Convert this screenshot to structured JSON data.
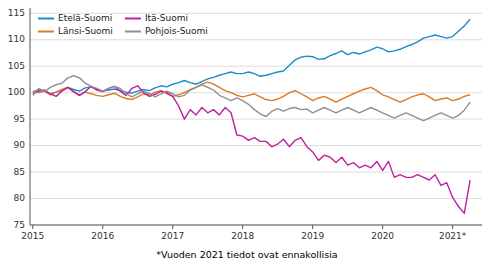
{
  "chart_data": {
    "type": "line",
    "subtitle": "*Vuoden 2021 tiedot ovat ennakollisia",
    "x": [
      2015,
      2015.083333,
      2015.166667,
      2015.25,
      2015.333333,
      2015.416667,
      2015.5,
      2015.583333,
      2015.666667,
      2015.75,
      2015.833333,
      2015.916667,
      2016,
      2016.083333,
      2016.166667,
      2016.25,
      2016.333333,
      2016.416667,
      2016.5,
      2016.583333,
      2016.666667,
      2016.75,
      2016.833333,
      2016.916667,
      2017,
      2017.083333,
      2017.166667,
      2017.25,
      2017.333333,
      2017.416667,
      2017.5,
      2017.583333,
      2017.666667,
      2017.75,
      2017.833333,
      2017.916667,
      2018,
      2018.083333,
      2018.166667,
      2018.25,
      2018.333333,
      2018.416667,
      2018.5,
      2018.583333,
      2018.666667,
      2018.75,
      2018.833333,
      2018.916667,
      2019,
      2019.083333,
      2019.166667,
      2019.25,
      2019.333333,
      2019.416667,
      2019.5,
      2019.583333,
      2019.666667,
      2019.75,
      2019.833333,
      2019.916667,
      2020,
      2020.083333,
      2020.166667,
      2020.25,
      2020.333333,
      2020.416667,
      2020.5,
      2020.583333,
      2020.666667,
      2020.75,
      2020.833333,
      2020.916667,
      2021,
      2021.083333,
      2021.166667,
      2021.25
    ],
    "series": [
      {
        "name": "Etelä-Suomi",
        "color": "#1a8dc8",
        "values": [
          100.2,
          100.5,
          100.3,
          99.8,
          100.1,
          100.4,
          101.0,
          100.6,
          100.3,
          100.9,
          101.1,
          100.6,
          100.3,
          100.5,
          100.7,
          100.4,
          100.1,
          99.9,
          100.3,
          100.6,
          100.4,
          100.9,
          101.3,
          101.1,
          101.6,
          101.9,
          102.3,
          101.9,
          101.6,
          102.1,
          102.6,
          102.9,
          103.3,
          103.6,
          103.9,
          103.6,
          103.6,
          103.9,
          103.6,
          103.1,
          103.3,
          103.6,
          103.9,
          104.1,
          105.2,
          106.2,
          106.7,
          106.9,
          106.8,
          106.3,
          106.4,
          107.0,
          107.4,
          107.9,
          107.2,
          107.6,
          107.3,
          107.7,
          108.1,
          108.6,
          108.3,
          107.7,
          107.9,
          108.2,
          108.7,
          109.1,
          109.6,
          110.3,
          110.6,
          110.9,
          110.6,
          110.3,
          110.6,
          111.6,
          112.6,
          113.9
        ]
      },
      {
        "name": "Länsi-Suomi",
        "color": "#e07820",
        "values": [
          100.2,
          100.0,
          100.3,
          99.6,
          100.1,
          100.6,
          101.0,
          100.2,
          99.5,
          100.1,
          99.8,
          99.5,
          99.3,
          99.6,
          99.9,
          99.3,
          98.9,
          98.7,
          99.2,
          99.8,
          99.6,
          100.1,
          100.4,
          99.8,
          99.3,
          99.6,
          100.0,
          100.6,
          101.0,
          101.6,
          102.0,
          101.6,
          101.0,
          100.4,
          100.0,
          99.5,
          99.2,
          99.5,
          99.8,
          99.2,
          98.7,
          98.5,
          98.8,
          99.3,
          100.0,
          100.4,
          99.8,
          99.2,
          98.5,
          99.0,
          99.3,
          98.8,
          98.2,
          98.8,
          99.3,
          99.8,
          100.3,
          100.7,
          101.0,
          100.4,
          99.6,
          99.2,
          98.7,
          98.2,
          98.7,
          99.2,
          99.6,
          99.8,
          99.2,
          98.5,
          98.8,
          99.0,
          98.5,
          98.8,
          99.3,
          99.6
        ]
      },
      {
        "name": "Itä-Suomi",
        "color": "#c020a0",
        "values": [
          99.8,
          100.3,
          100.5,
          99.8,
          99.3,
          100.3,
          101.0,
          100.2,
          99.5,
          100.2,
          101.2,
          100.5,
          100.2,
          100.8,
          101.2,
          100.3,
          99.5,
          100.8,
          101.3,
          100.0,
          99.3,
          99.7,
          100.3,
          100.0,
          99.3,
          97.5,
          95.0,
          96.8,
          95.8,
          97.2,
          96.2,
          96.8,
          95.8,
          97.2,
          96.2,
          92.0,
          91.8,
          91.0,
          91.5,
          90.8,
          90.8,
          89.8,
          90.3,
          91.2,
          89.8,
          91.0,
          91.5,
          89.8,
          88.8,
          87.2,
          88.2,
          87.8,
          86.8,
          87.8,
          86.3,
          86.8,
          85.8,
          86.3,
          85.8,
          87.0,
          85.3,
          87.0,
          84.0,
          84.5,
          84.0,
          84.0,
          84.5,
          84.0,
          83.5,
          84.5,
          82.5,
          83.0,
          80.2,
          78.5,
          77.2,
          83.5
        ]
      },
      {
        "name": "Pohjois-Suomi",
        "color": "#909090",
        "values": [
          99.5,
          100.8,
          100.2,
          101.0,
          101.5,
          101.8,
          102.8,
          103.2,
          102.8,
          101.8,
          101.2,
          100.8,
          100.3,
          100.8,
          101.2,
          100.8,
          99.8,
          99.2,
          99.8,
          100.3,
          99.8,
          99.2,
          99.8,
          100.3,
          99.8,
          99.2,
          99.5,
          100.5,
          101.0,
          101.5,
          101.0,
          100.5,
          99.5,
          99.0,
          98.5,
          99.0,
          98.5,
          97.8,
          96.8,
          96.0,
          95.5,
          96.5,
          97.0,
          96.5,
          97.0,
          97.2,
          96.8,
          96.9,
          96.2,
          96.7,
          97.2,
          96.7,
          96.2,
          96.7,
          97.2,
          96.7,
          96.2,
          96.7,
          97.2,
          96.7,
          96.2,
          95.7,
          95.2,
          95.7,
          96.2,
          95.7,
          95.2,
          94.7,
          95.2,
          95.7,
          96.2,
          95.7,
          95.2,
          95.7,
          96.7,
          98.2
        ]
      }
    ],
    "xlim": [
      2014.96,
      2021.42
    ],
    "xticks": [
      2015,
      2016,
      2017,
      2018,
      2019,
      2020,
      {
        "value": 2021,
        "label": "2021*"
      }
    ],
    "ylim": [
      75,
      116
    ],
    "yticks": [
      75,
      80,
      85,
      90,
      95,
      100,
      105,
      110,
      115
    ],
    "grid": true,
    "legend": "upper left"
  }
}
